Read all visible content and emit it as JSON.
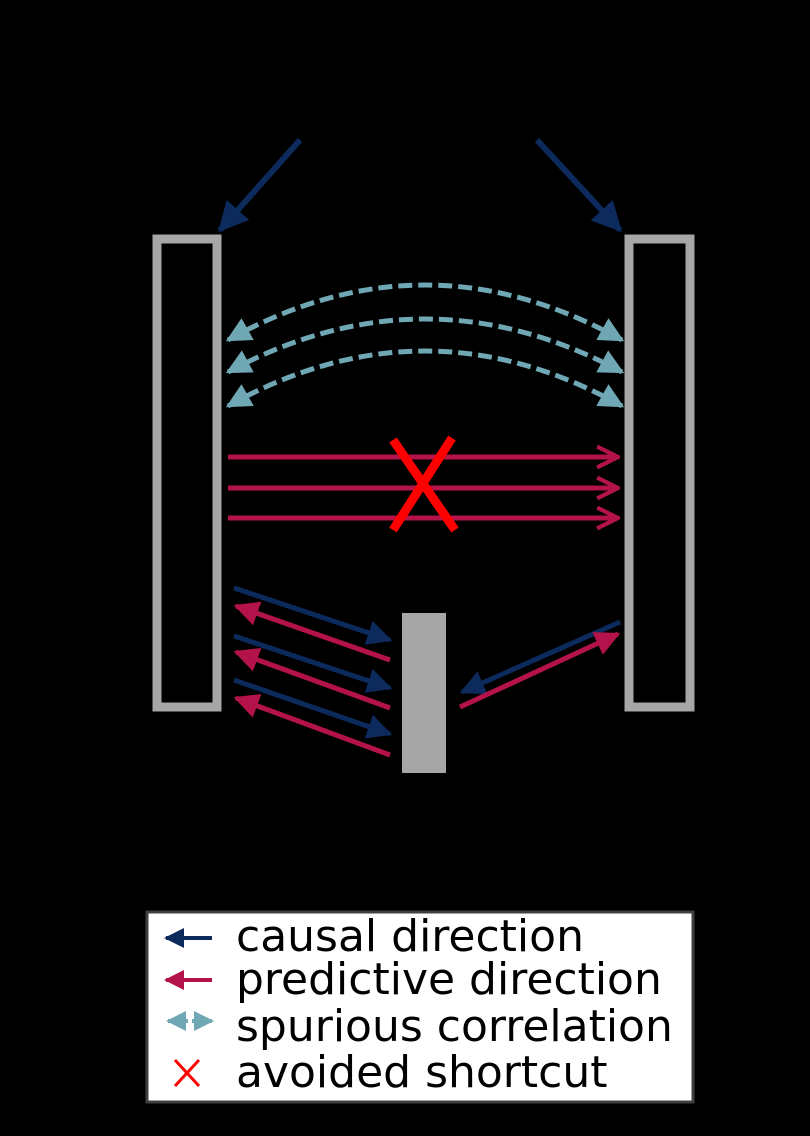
{
  "colors": {
    "background": "#000000",
    "box": "#a6a6a6",
    "causal": "#0d2a5c",
    "predictive": "#b3124a",
    "spurious": "#6fa8b4",
    "shortcut": "#ff0000"
  },
  "legend": {
    "items": [
      {
        "label": "causal direction",
        "icon": "causal-arrow-icon"
      },
      {
        "label": "predictive direction",
        "icon": "predictive-arrow-icon"
      },
      {
        "label": "spurious correlation",
        "icon": "spurious-double-arrow-icon"
      },
      {
        "label": "avoided shortcut",
        "icon": "cross-icon"
      }
    ]
  }
}
